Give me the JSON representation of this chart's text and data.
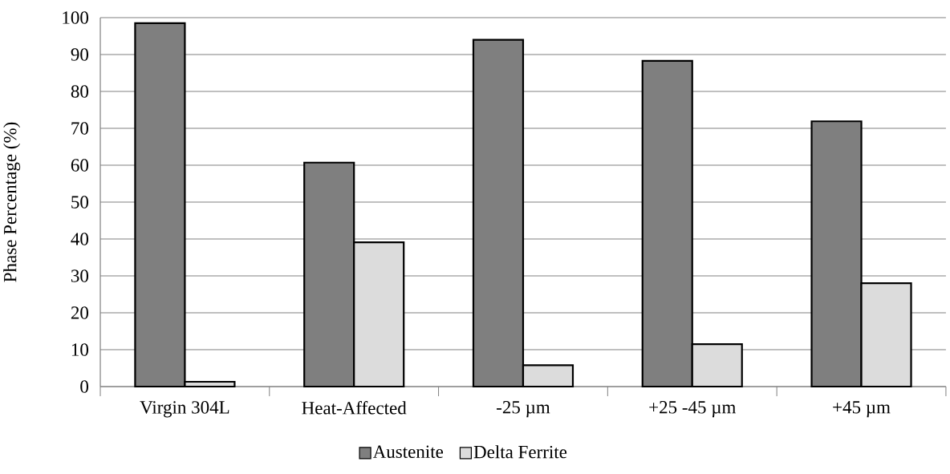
{
  "chart_data": {
    "type": "bar",
    "ylabel": "Phase Percentage (%)",
    "categories": [
      "Virgin 304L",
      "Heat-Affected",
      "-25 µm",
      "+25 -45 µm",
      "+45 µm"
    ],
    "series": [
      {
        "name": "Austenite",
        "color": "#7f7f7f",
        "values": [
          98.5,
          60.7,
          94.0,
          88.3,
          71.9
        ]
      },
      {
        "name": "Delta Ferrite",
        "color": "#dcdcdc",
        "values": [
          1.3,
          39.1,
          5.8,
          11.5,
          28.0
        ]
      }
    ],
    "ylim": [
      0,
      100
    ],
    "yticks": [
      0,
      10,
      20,
      30,
      40,
      50,
      60,
      70,
      80,
      90,
      100
    ],
    "grid": "y",
    "legend": "bottom"
  }
}
